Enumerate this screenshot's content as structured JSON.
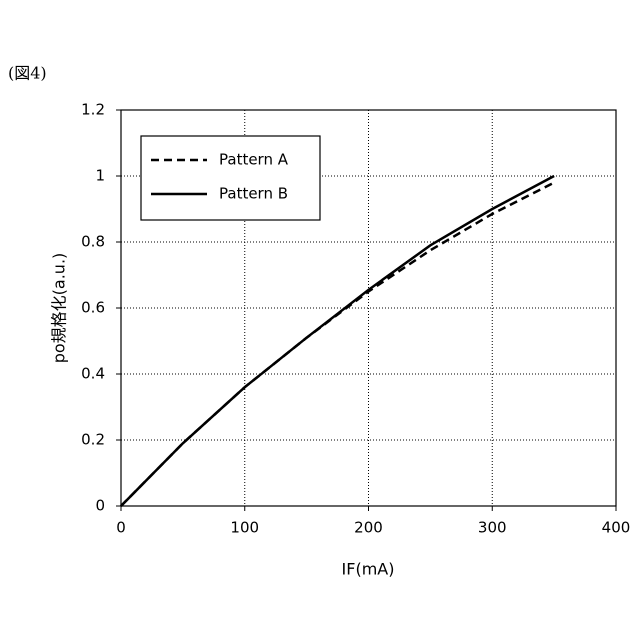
{
  "chart_data": {
    "type": "line",
    "figure_label": "(図4)",
    "xlabel": "IF(mA)",
    "ylabel": "po規格化(a.u.)",
    "x": [
      0,
      50,
      100,
      150,
      200,
      250,
      300,
      350
    ],
    "series": [
      {
        "name": "Pattern A",
        "color": "#000000",
        "style": "dashed",
        "values": [
          0,
          0.19,
          0.36,
          0.51,
          0.65,
          0.775,
          0.885,
          0.98
        ]
      },
      {
        "name": "Pattern B",
        "color": "#000000",
        "style": "solid",
        "values": [
          0,
          0.19,
          0.36,
          0.51,
          0.655,
          0.79,
          0.9,
          1.0
        ]
      }
    ],
    "xlim": [
      0,
      400
    ],
    "xticks": [
      0,
      100,
      200,
      300,
      400
    ],
    "ylim": [
      0,
      1.2
    ],
    "yticks": [
      0,
      0.2,
      0.4,
      0.6,
      0.8,
      1,
      1.2
    ],
    "grid": true,
    "legend": "upper left"
  }
}
